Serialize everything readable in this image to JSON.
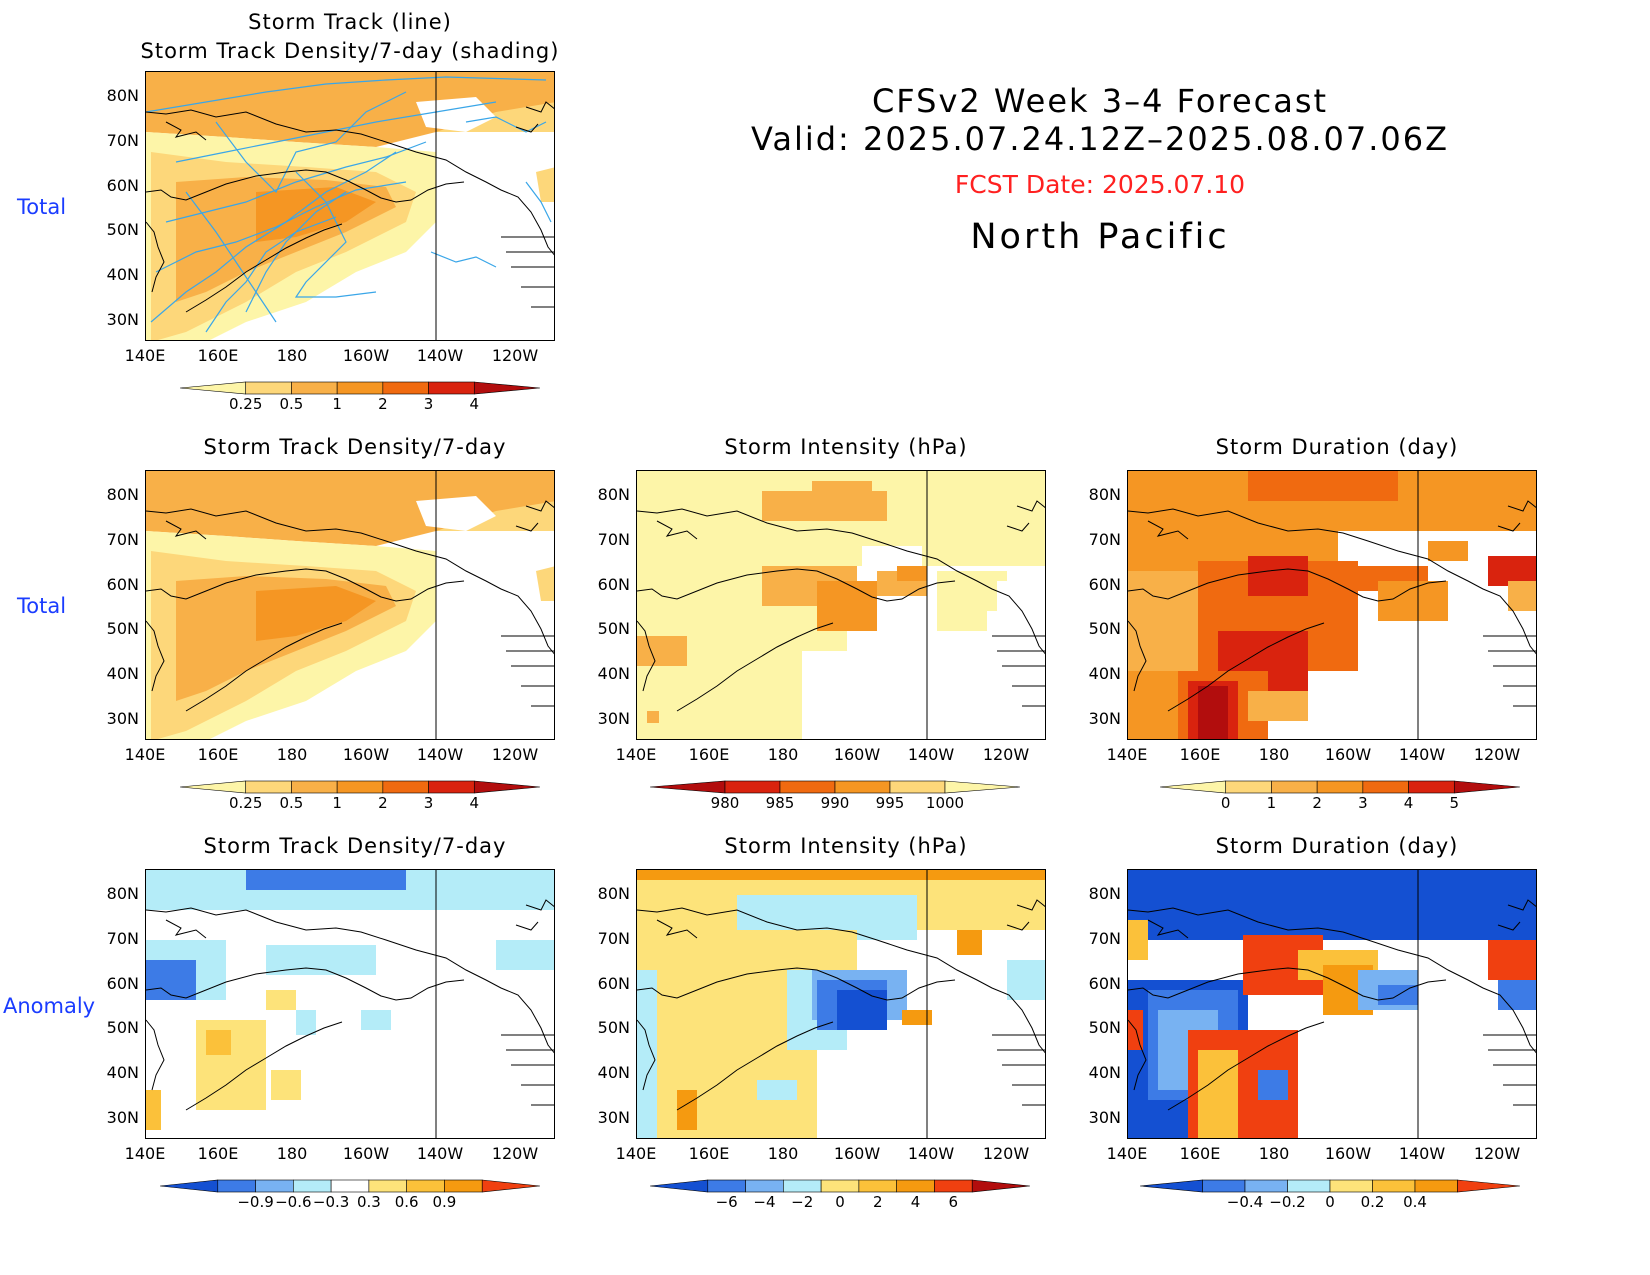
{
  "header": {
    "line1": "CFSv2 Week 3–4 Forecast",
    "line2": "Valid: 2025.07.24.12Z–2025.08.07.06Z",
    "fcst": "FCST Date: 2025.07.10",
    "region": "North Pacific"
  },
  "row_labels": {
    "top": "Total",
    "middle": "Total",
    "bottom": "Anomaly"
  },
  "axes": {
    "lat": [
      "80N",
      "70N",
      "60N",
      "50N",
      "40N",
      "30N"
    ],
    "lon": [
      "140E",
      "160E",
      "180",
      "160W",
      "140W",
      "120W"
    ]
  },
  "panels": {
    "p_top": {
      "title1": "Storm Track (line)",
      "title2": "Storm Track Density/7-day (shading)"
    },
    "p_dens_total": {
      "title": "Storm Track Density/7-day"
    },
    "p_int_total": {
      "title": "Storm Intensity (hPa)"
    },
    "p_dur_total": {
      "title": "Storm Duration (day)"
    },
    "p_dens_anom": {
      "title": "Storm Track Density/7-day"
    },
    "p_int_anom": {
      "title": "Storm Intensity (hPa)"
    },
    "p_dur_anom": {
      "title": "Storm Duration (day)"
    }
  },
  "colorbars": {
    "density": {
      "labels": [
        "0.25",
        "0.5",
        "1",
        "2",
        "3",
        "4"
      ],
      "colors": [
        "#fdf5a8",
        "#fdd77a",
        "#f8b048",
        "#f59623",
        "#f06a10",
        "#d9230e",
        "#b20d0d"
      ]
    },
    "intensity": {
      "labels": [
        "980",
        "985",
        "990",
        "995",
        "1000"
      ],
      "colors": [
        "#b20d0d",
        "#d9230e",
        "#f06a10",
        "#f59623",
        "#fdd77a",
        "#fdf5a8"
      ]
    },
    "duration": {
      "labels": [
        "0",
        "1",
        "2",
        "3",
        "4",
        "5"
      ],
      "colors": [
        "#fdf5a8",
        "#fdd77a",
        "#f8b048",
        "#f59623",
        "#f06a10",
        "#d9230e",
        "#b20d0d"
      ]
    },
    "dens_anom": {
      "labels": [
        "−0.9",
        "−0.6",
        "−0.3",
        "0.3",
        "0.6",
        "0.9"
      ],
      "colors": [
        "#1450d2",
        "#3d7be6",
        "#78b2f2",
        "#b4ecf8",
        "#ffffff",
        "#fde37a",
        "#fbc13a",
        "#f59a10",
        "#f04010"
      ]
    },
    "int_anom": {
      "labels": [
        "−6",
        "−4",
        "−2",
        "0",
        "2",
        "4",
        "6"
      ],
      "colors": [
        "#1450d2",
        "#3d7be6",
        "#78b2f2",
        "#b4ecf8",
        "#fde37a",
        "#fbc13a",
        "#f59a10",
        "#f04010",
        "#b20d0d"
      ]
    },
    "dur_anom": {
      "labels": [
        "−0.4",
        "−0.2",
        "0",
        "0.2",
        "0.4"
      ],
      "colors": [
        "#1450d2",
        "#3d7be6",
        "#78b2f2",
        "#b4ecf8",
        "#fde37a",
        "#fbc13a",
        "#f59a10",
        "#f04010"
      ]
    }
  }
}
